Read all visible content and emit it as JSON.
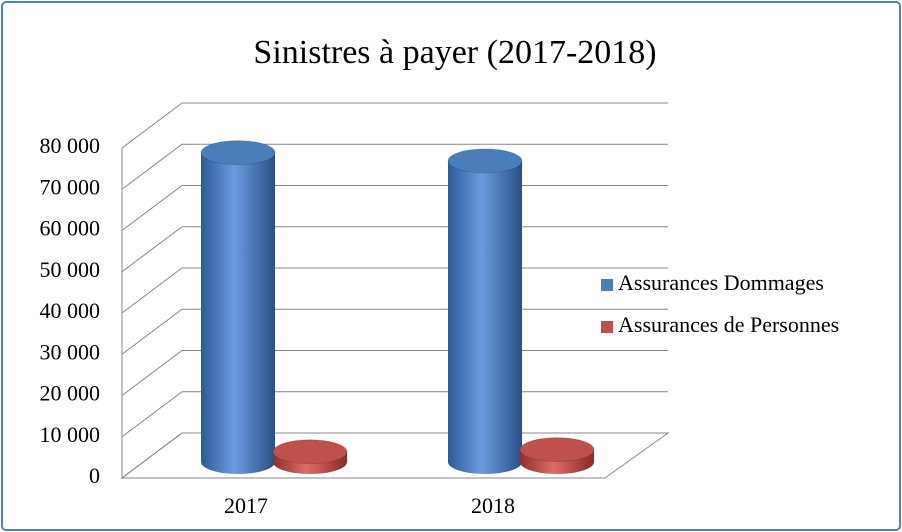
{
  "chart_data": {
    "type": "bar3d",
    "title": "Sinistres à payer (2017-2018)",
    "categories": [
      "2017",
      "2018"
    ],
    "series": [
      {
        "name": "Assurances Dommages",
        "color": "#4a7ebb",
        "values": [
          75000,
          73000
        ]
      },
      {
        "name": "Assurances de Personnes",
        "color": "#c0504d",
        "values": [
          2500,
          3000
        ]
      }
    ],
    "ylim": [
      0,
      80000
    ],
    "yticks": [
      0,
      {
        "value": 10000,
        "label": "10 000"
      },
      {
        "value": 20000,
        "label": "20 000"
      },
      {
        "value": 30000,
        "label": "30 000"
      },
      {
        "value": 40000,
        "label": "40 000"
      },
      {
        "value": 50000,
        "label": "50 000"
      },
      {
        "value": 60000,
        "label": "60 000"
      },
      {
        "value": 70000,
        "label": "70 000"
      },
      {
        "value": 80000,
        "label": "80 000"
      }
    ],
    "grid": true,
    "legend": "right"
  }
}
